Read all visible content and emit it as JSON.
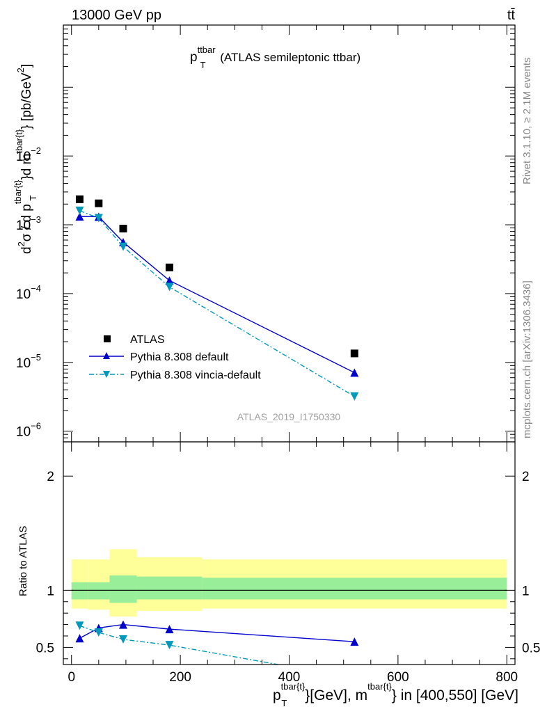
{
  "header": {
    "left": "13000 GeV pp",
    "right": "tt̄"
  },
  "side_labels": {
    "top": "Rivet 3.1.10, ≥ 2.1M events",
    "bottom": "mcplots.cern.ch [arXiv:1306.3436]"
  },
  "colors": {
    "atlas": "#000000",
    "default": "#0000cc",
    "vincia": "#0099bb",
    "band_inner": "#99ee99",
    "band_outer": "#ffff99"
  },
  "chart_data": [
    {
      "type": "scatter",
      "title": {
        "p": "p",
        "sup": "ttbar",
        "sub": "T",
        "rest": " (ATLAS semileptonic ttbar)"
      },
      "ylabel": "d²σ / d p_T^{tbar{t}}d m^{tbar{t}} [pb/GeV²]",
      "ylabel_parts": {
        "a": "d",
        "b": "2",
        "c": "σ / d p",
        "d": "tbar{t}",
        "e": "T",
        "f": "}d m",
        "g": "tbar{t}",
        "h": "} [pb/GeV",
        "i": "2",
        "j": "]"
      },
      "yscale": "log",
      "ylim": [
        7e-07,
        0.8
      ],
      "xlim": [
        -15,
        815
      ],
      "ytick_labels": [
        {
          "v": 1e-06,
          "m": "10",
          "e": "−6"
        },
        {
          "v": 1e-05,
          "m": "10",
          "e": "−5"
        },
        {
          "v": 0.0001,
          "m": "10",
          "e": "−4"
        },
        {
          "v": 0.001,
          "m": "10",
          "e": "−3"
        },
        {
          "v": 0.01,
          "m": "10",
          "e": "−2"
        }
      ],
      "watermark": "ATLAS_2019_I1750330",
      "series": [
        {
          "name": "ATLAS",
          "x": [
            15,
            50,
            95,
            180,
            520
          ],
          "values": [
            0.00235,
            0.00205,
            0.00088,
            0.00024,
            1.35e-05
          ]
        },
        {
          "name": "Pythia 8.308 default",
          "x": [
            15,
            50,
            95,
            180,
            520
          ],
          "values": [
            0.00132,
            0.00131,
            0.00056,
            0.000155,
            7.1e-06
          ]
        },
        {
          "name": "Pythia 8.308 vincia-default",
          "x": [
            15,
            50,
            95,
            180,
            520
          ],
          "values": [
            0.0016,
            0.00125,
            0.00048,
            0.000125,
            3.2e-06
          ]
        }
      ]
    },
    {
      "type": "line",
      "ylabel": "Ratio to ATLAS",
      "ylim": [
        0.35,
        2.3
      ],
      "xlim": [
        -15,
        815
      ],
      "xlabel_parts": {
        "a": "p",
        "b": "tbar{t}",
        "c": "T",
        "d": "}[GeV], m",
        "e": "tbar{t}",
        "f": "} in [400,550] [GeV]"
      },
      "xtick_labels": [
        "0",
        "200",
        "400",
        "600",
        "800"
      ],
      "ytick_labels": [
        "0.5",
        "1",
        "2"
      ],
      "bands": [
        {
          "x0": 0,
          "x1": 30,
          "inner": [
            0.92,
            1.07
          ],
          "outer": [
            0.84,
            1.27
          ]
        },
        {
          "x0": 30,
          "x1": 70,
          "inner": [
            0.92,
            1.07
          ],
          "outer": [
            0.83,
            1.27
          ]
        },
        {
          "x0": 70,
          "x1": 120,
          "inner": [
            0.89,
            1.13
          ],
          "outer": [
            0.77,
            1.36
          ]
        },
        {
          "x0": 120,
          "x1": 240,
          "inner": [
            0.92,
            1.12
          ],
          "outer": [
            0.82,
            1.29
          ]
        },
        {
          "x0": 240,
          "x1": 800,
          "inner": [
            0.92,
            1.11
          ],
          "outer": [
            0.84,
            1.27
          ]
        }
      ],
      "series": [
        {
          "name": "Pythia 8.308 default",
          "x": [
            15,
            50,
            95,
            180,
            520
          ],
          "values": [
            0.58,
            0.67,
            0.7,
            0.66,
            0.55
          ]
        },
        {
          "name": "Pythia 8.308 vincia-default",
          "x": [
            15,
            50,
            95,
            180,
            520
          ],
          "values": [
            0.69,
            0.63,
            0.57,
            0.52,
            0.23
          ]
        }
      ]
    }
  ]
}
